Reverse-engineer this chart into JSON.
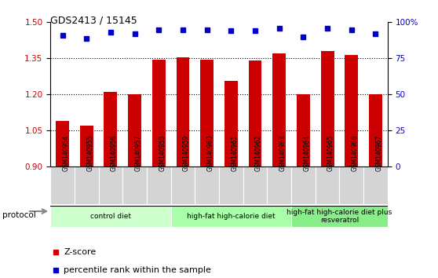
{
  "title": "GDS2413 / 15145",
  "samples": [
    "GSM140954",
    "GSM140955",
    "GSM140956",
    "GSM140957",
    "GSM140958",
    "GSM140959",
    "GSM140960",
    "GSM140961",
    "GSM140962",
    "GSM140963",
    "GSM140964",
    "GSM140965",
    "GSM140966",
    "GSM140967"
  ],
  "zscore": [
    1.09,
    1.07,
    1.21,
    1.2,
    1.345,
    1.355,
    1.345,
    1.255,
    1.34,
    1.37,
    1.2,
    1.38,
    1.365,
    1.2
  ],
  "percentile": [
    91,
    89,
    93,
    92,
    95,
    95,
    95,
    94,
    94,
    96,
    90,
    96,
    95,
    92
  ],
  "bar_color": "#cc0000",
  "dot_color": "#0000cc",
  "ylim_left": [
    0.9,
    1.5
  ],
  "ylim_right": [
    0,
    100
  ],
  "yticks_left": [
    0.9,
    1.05,
    1.2,
    1.35,
    1.5
  ],
  "yticks_right": [
    0,
    25,
    50,
    75,
    100
  ],
  "ytick_labels_right": [
    "0",
    "25",
    "50",
    "75",
    "100%"
  ],
  "grid_values": [
    1.05,
    1.2,
    1.35
  ],
  "protocol_groups": [
    {
      "label": "control diet",
      "start": 0,
      "end": 4,
      "color": "#ccffcc"
    },
    {
      "label": "high-fat high-calorie diet",
      "start": 5,
      "end": 9,
      "color": "#aaffaa"
    },
    {
      "label": "high-fat high-calorie diet plus\nresveratrol",
      "start": 10,
      "end": 13,
      "color": "#88ee88"
    }
  ],
  "legend_zscore_label": "Z-score",
  "legend_pct_label": "percentile rank within the sample",
  "protocol_label": "protocol"
}
